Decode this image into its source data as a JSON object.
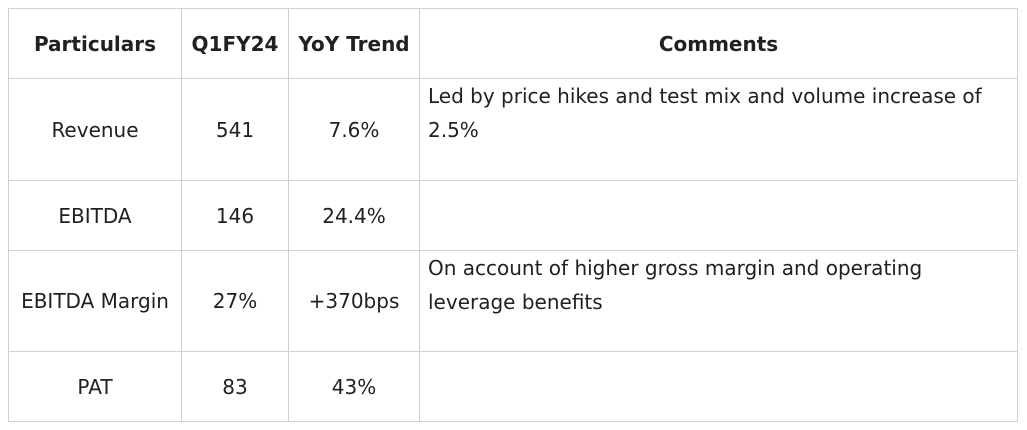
{
  "table": {
    "headers": {
      "particulars": "Particulars",
      "q1fy24": "Q1FY24",
      "yoy_trend": "YoY Trend",
      "comments": "Comments"
    },
    "rows": [
      {
        "particulars": "Revenue",
        "q1fy24": "541",
        "yoy_trend": "7.6%",
        "comments": "Led by price hikes and test mix and volume increase of 2.5%"
      },
      {
        "particulars": "EBITDA",
        "q1fy24": "146",
        "yoy_trend": "24.4%",
        "comments": ""
      },
      {
        "particulars": "EBITDA Margin",
        "q1fy24": "27%",
        "yoy_trend": "+370bps",
        "comments": "On account of higher gross margin and operating leverage benefits"
      },
      {
        "particulars": "PAT",
        "q1fy24": "83",
        "yoy_trend": "43%",
        "comments": ""
      }
    ]
  }
}
